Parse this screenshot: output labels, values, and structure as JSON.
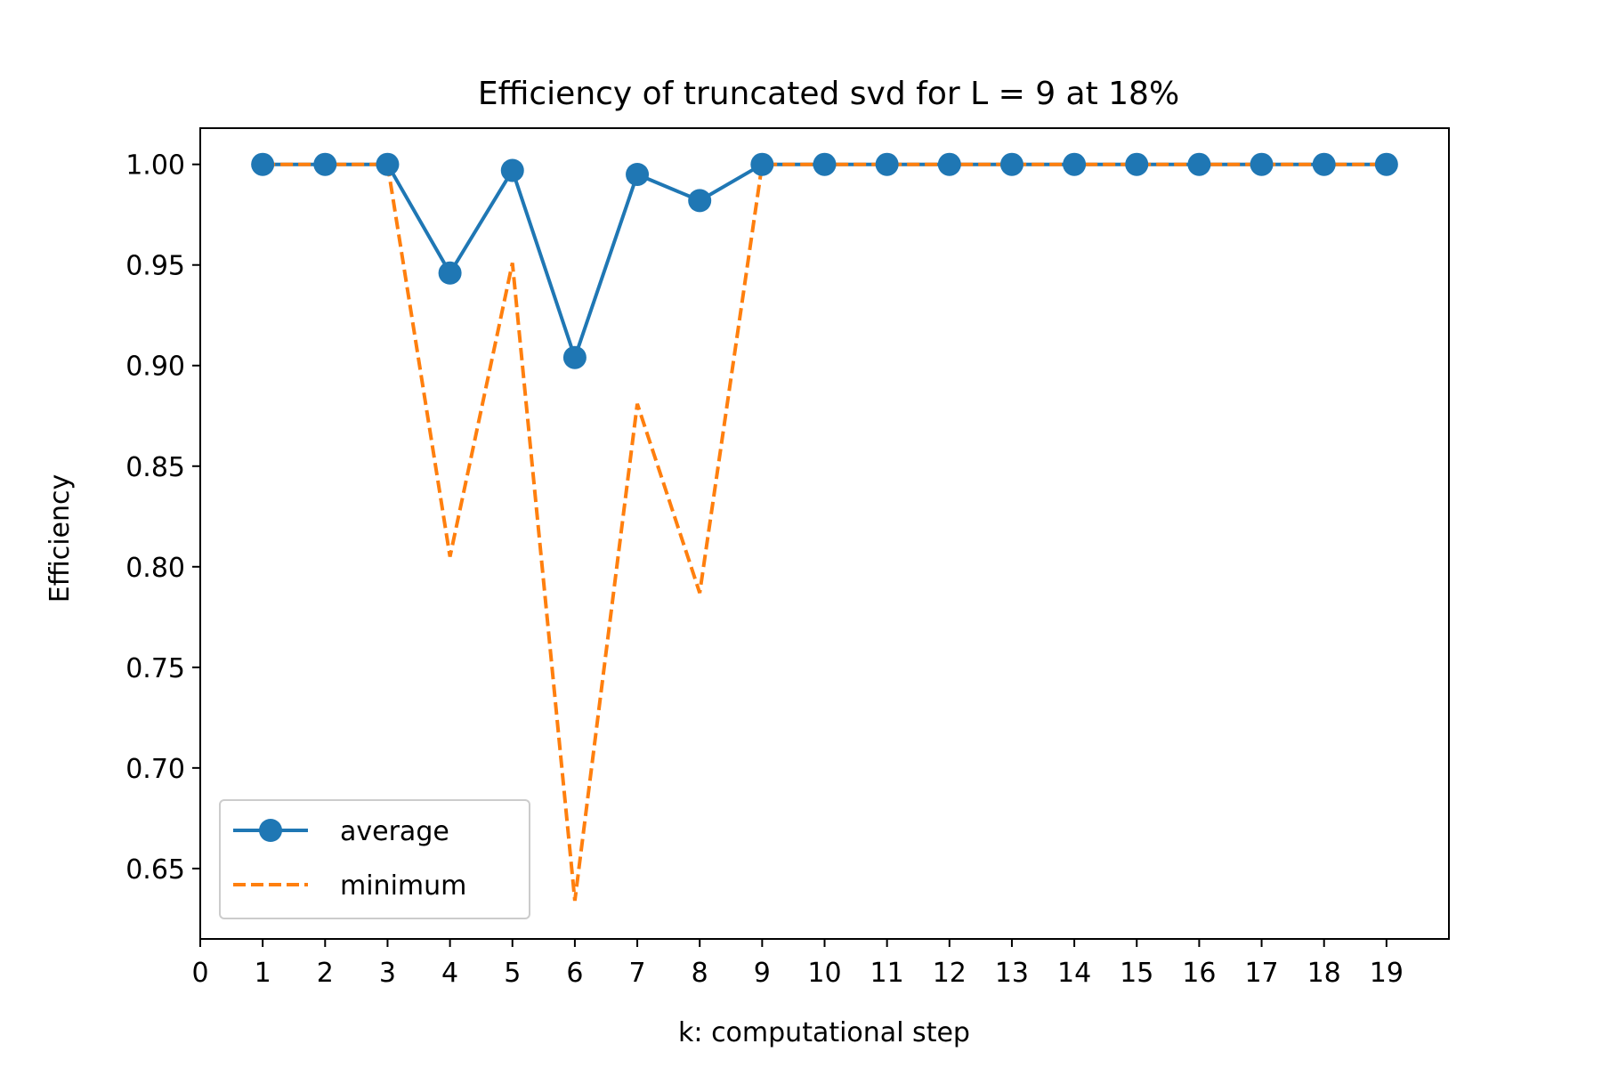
{
  "chart_data": {
    "type": "line",
    "title": "Efficiency of truncated svd for L = 9 at 18%",
    "xlabel": "k: computational step",
    "ylabel": "Efficiency",
    "xlim": [
      0,
      20
    ],
    "ylim": [
      0.615,
      1.018
    ],
    "xticks": [
      0,
      1,
      2,
      3,
      4,
      5,
      6,
      7,
      8,
      9,
      10,
      11,
      12,
      13,
      14,
      15,
      16,
      17,
      18,
      19
    ],
    "yticks": [
      0.65,
      0.7,
      0.75,
      0.8,
      0.85,
      0.9,
      0.95,
      1.0
    ],
    "ytick_labels": [
      "0.65",
      "0.70",
      "0.75",
      "0.80",
      "0.85",
      "0.90",
      "0.95",
      "1.00"
    ],
    "x": [
      1,
      2,
      3,
      4,
      5,
      6,
      7,
      8,
      9,
      10,
      11,
      12,
      13,
      14,
      15,
      16,
      17,
      18,
      19
    ],
    "series": [
      {
        "name": "average",
        "style": "solid-marker",
        "color": "#1f77b4",
        "values": [
          1.0,
          1.0,
          1.0,
          0.946,
          0.997,
          0.904,
          0.995,
          0.982,
          1.0,
          1.0,
          1.0,
          1.0,
          1.0,
          1.0,
          1.0,
          1.0,
          1.0,
          1.0,
          1.0
        ]
      },
      {
        "name": "minimum",
        "style": "dashed",
        "color": "#ff7f0e",
        "values": [
          1.0,
          1.0,
          1.0,
          0.805,
          0.951,
          0.634,
          0.881,
          0.787,
          1.0,
          1.0,
          1.0,
          1.0,
          1.0,
          1.0,
          1.0,
          1.0,
          1.0,
          1.0,
          1.0
        ]
      }
    ],
    "legend": "lower-left",
    "grid": false
  }
}
